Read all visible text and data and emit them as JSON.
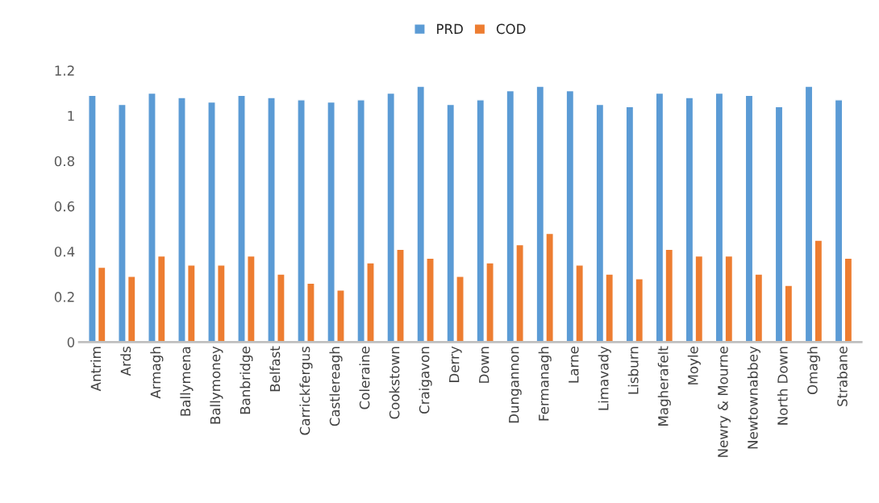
{
  "chart_data": {
    "type": "bar",
    "categories": [
      "Antrim",
      "Ards",
      "Armagh",
      "Ballymena",
      "Ballymoney",
      "Banbridge",
      "Belfast",
      "Carrickfergus",
      "Castlereagh",
      "Coleraine",
      "Cookstown",
      "Craigavon",
      "Derry",
      "Down",
      "Dungannon",
      "Fermanagh",
      "Larne",
      "Limavady",
      "Lisburn",
      "Magherafelt",
      "Moyle",
      "Newry & Mourne",
      "Newtownabbey",
      "North Down",
      "Omagh",
      "Strabane"
    ],
    "series": [
      {
        "name": "PRD",
        "color": "#5b9bd5",
        "values": [
          1.09,
          1.05,
          1.1,
          1.08,
          1.06,
          1.09,
          1.08,
          1.07,
          1.06,
          1.07,
          1.1,
          1.13,
          1.05,
          1.07,
          1.11,
          1.13,
          1.11,
          1.05,
          1.04,
          1.1,
          1.08,
          1.1,
          1.09,
          1.04,
          1.13,
          1.07
        ]
      },
      {
        "name": "COD",
        "color": "#ed7d31",
        "values": [
          0.33,
          0.29,
          0.38,
          0.34,
          0.34,
          0.38,
          0.3,
          0.26,
          0.23,
          0.35,
          0.41,
          0.37,
          0.29,
          0.35,
          0.43,
          0.48,
          0.34,
          0.3,
          0.28,
          0.41,
          0.38,
          0.38,
          0.3,
          0.25,
          0.45,
          0.37
        ]
      }
    ],
    "ylim": [
      0,
      1.2
    ],
    "yticks": [
      0,
      0.2,
      0.4,
      0.6,
      0.8,
      1,
      1.2
    ],
    "grid": false,
    "legend": "top"
  }
}
